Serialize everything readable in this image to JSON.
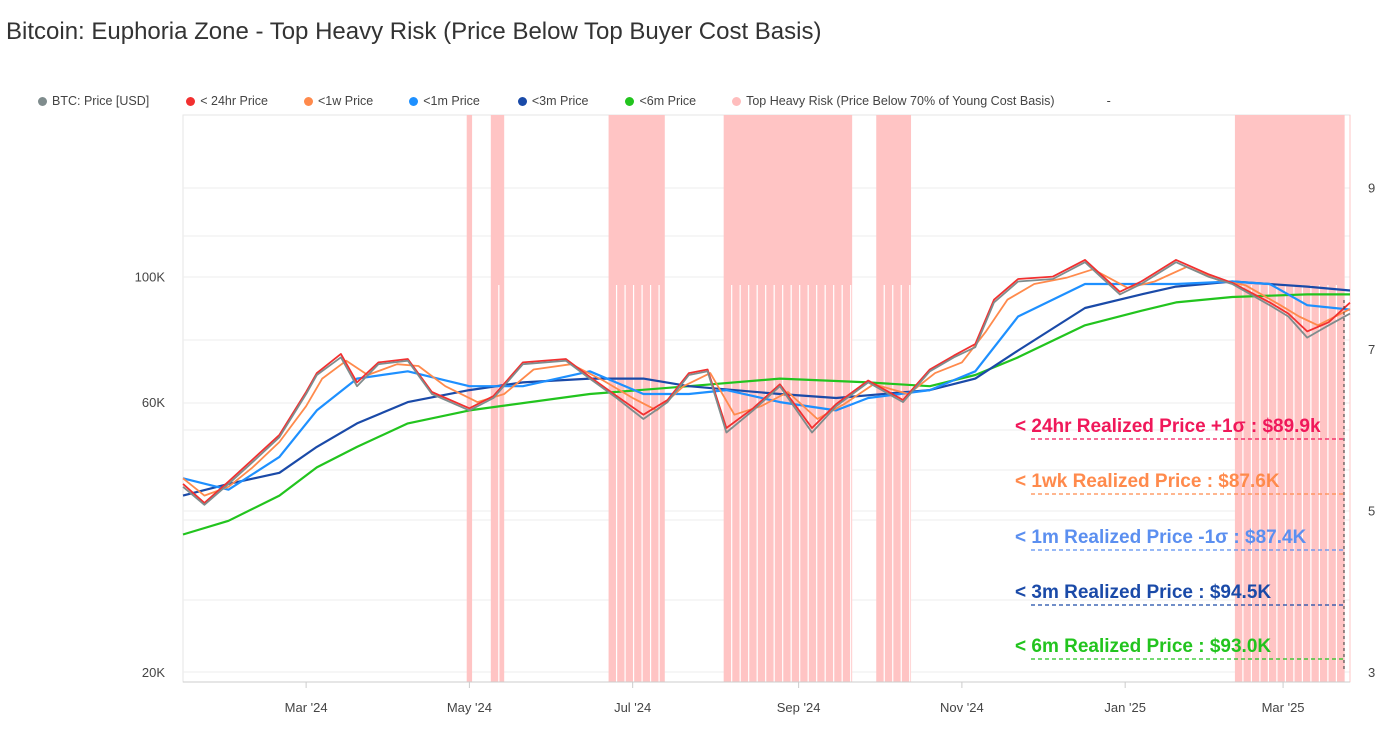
{
  "title": "Bitcoin: Euphoria Zone - Top Heavy Risk (Price Below Top Buyer Cost Basis)",
  "legend": [
    {
      "label": "BTC: Price [USD]",
      "color": "#7f8c8d"
    },
    {
      "label": "< 24hr Price",
      "color": "#f23030"
    },
    {
      "label": "<1w Price",
      "color": "#ff8a4c"
    },
    {
      "label": "<1m Price",
      "color": "#1e90ff"
    },
    {
      "label": "<3m Price",
      "color": "#1a4aa8"
    },
    {
      "label": "<6m Price",
      "color": "#22c41e"
    },
    {
      "label": "Top Heavy Risk (Price Below 70% of Young Cost Basis)",
      "color": "#ffbdbd"
    },
    {
      "label": "-",
      "color": ""
    }
  ],
  "chart_data": {
    "type": "line",
    "title": "Bitcoin: Euphoria Zone - Top Heavy Risk (Price Below Top Buyer Cost Basis)",
    "y_scale": "log",
    "ylim": [
      20000,
      193000
    ],
    "y_ticks": [
      {
        "value": 20000,
        "label": "20K"
      },
      {
        "value": 60000,
        "label": "60K"
      },
      {
        "value": 100000,
        "label": "100K"
      }
    ],
    "y2_ticks": [
      3,
      5,
      7,
      9
    ],
    "y2lim": [
      3,
      9.9
    ],
    "xlim": [
      "2024-01-15",
      "2025-03-26"
    ],
    "x_ticks": [
      {
        "date": "2024-03-01",
        "label": "Mar '24"
      },
      {
        "date": "2024-05-01",
        "label": "May '24"
      },
      {
        "date": "2024-07-01",
        "label": "Jul '24"
      },
      {
        "date": "2024-09-01",
        "label": "Sep '24"
      },
      {
        "date": "2024-11-01",
        "label": "Nov '24"
      },
      {
        "date": "2025-01-01",
        "label": "Jan '25"
      },
      {
        "date": "2025-03-01",
        "label": "Mar '25"
      }
    ],
    "grid": true,
    "legend_position": "top",
    "shaded_ranges": [
      [
        "2024-04-30",
        "2024-05-02"
      ],
      [
        "2024-05-09",
        "2024-05-14"
      ],
      [
        "2024-06-22",
        "2024-07-13"
      ],
      [
        "2024-08-04",
        "2024-09-21"
      ],
      [
        "2024-09-30",
        "2024-10-13"
      ],
      [
        "2025-02-11",
        "2025-03-24"
      ]
    ],
    "series": [
      {
        "name": "BTC: Price [USD]",
        "color": "#7f8c8d",
        "points": [
          [
            "2024-01-15",
            42500
          ],
          [
            "2024-01-23",
            39500
          ],
          [
            "2024-02-01",
            43000
          ],
          [
            "2024-02-10",
            47000
          ],
          [
            "2024-02-20",
            52000
          ],
          [
            "2024-03-01",
            62000
          ],
          [
            "2024-03-05",
            67000
          ],
          [
            "2024-03-14",
            72000
          ],
          [
            "2024-03-20",
            64000
          ],
          [
            "2024-03-28",
            70000
          ],
          [
            "2024-04-08",
            71000
          ],
          [
            "2024-04-17",
            62000
          ],
          [
            "2024-05-01",
            58000
          ],
          [
            "2024-05-10",
            61000
          ],
          [
            "2024-05-21",
            70000
          ],
          [
            "2024-06-06",
            71000
          ],
          [
            "2024-06-15",
            66000
          ],
          [
            "2024-06-25",
            61000
          ],
          [
            "2024-07-05",
            56000
          ],
          [
            "2024-07-14",
            60000
          ],
          [
            "2024-07-22",
            67000
          ],
          [
            "2024-07-29",
            68000
          ],
          [
            "2024-08-05",
            53000
          ],
          [
            "2024-08-15",
            58000
          ],
          [
            "2024-08-25",
            64000
          ],
          [
            "2024-09-06",
            53000
          ],
          [
            "2024-09-15",
            59000
          ],
          [
            "2024-09-27",
            65000
          ],
          [
            "2024-10-10",
            60000
          ],
          [
            "2024-10-20",
            68000
          ],
          [
            "2024-10-29",
            72000
          ],
          [
            "2024-11-06",
            75000
          ],
          [
            "2024-11-13",
            90000
          ],
          [
            "2024-11-22",
            98000
          ],
          [
            "2024-12-05",
            99000
          ],
          [
            "2024-12-17",
            106000
          ],
          [
            "2024-12-30",
            93000
          ],
          [
            "2025-01-07",
            97000
          ],
          [
            "2025-01-20",
            106000
          ],
          [
            "2025-02-01",
            100000
          ],
          [
            "2025-02-10",
            97000
          ],
          [
            "2025-02-24",
            89000
          ],
          [
            "2025-03-03",
            85000
          ],
          [
            "2025-03-10",
            78000
          ],
          [
            "2025-03-18",
            82000
          ],
          [
            "2025-03-26",
            86000
          ]
        ]
      },
      {
        "name": "< 24hr Price",
        "color": "#f23030",
        "points": [
          [
            "2024-01-15",
            43000
          ],
          [
            "2024-01-23",
            39800
          ],
          [
            "2024-02-01",
            43400
          ],
          [
            "2024-02-10",
            47500
          ],
          [
            "2024-02-20",
            52500
          ],
          [
            "2024-03-01",
            62500
          ],
          [
            "2024-03-05",
            67500
          ],
          [
            "2024-03-14",
            73000
          ],
          [
            "2024-03-20",
            65000
          ],
          [
            "2024-03-28",
            70500
          ],
          [
            "2024-04-08",
            71500
          ],
          [
            "2024-04-17",
            62500
          ],
          [
            "2024-05-01",
            58500
          ],
          [
            "2024-05-10",
            61500
          ],
          [
            "2024-05-21",
            70500
          ],
          [
            "2024-06-06",
            71500
          ],
          [
            "2024-06-15",
            66500
          ],
          [
            "2024-06-25",
            61500
          ],
          [
            "2024-07-05",
            57000
          ],
          [
            "2024-07-14",
            60500
          ],
          [
            "2024-07-22",
            67500
          ],
          [
            "2024-07-29",
            68500
          ],
          [
            "2024-08-05",
            54000
          ],
          [
            "2024-08-15",
            58500
          ],
          [
            "2024-08-25",
            64500
          ],
          [
            "2024-09-06",
            54000
          ],
          [
            "2024-09-15",
            59500
          ],
          [
            "2024-09-27",
            65500
          ],
          [
            "2024-10-10",
            60500
          ],
          [
            "2024-10-20",
            68500
          ],
          [
            "2024-10-29",
            72500
          ],
          [
            "2024-11-06",
            76000
          ],
          [
            "2024-11-13",
            91000
          ],
          [
            "2024-11-22",
            99000
          ],
          [
            "2024-12-05",
            100000
          ],
          [
            "2024-12-17",
            107000
          ],
          [
            "2024-12-30",
            94000
          ],
          [
            "2025-01-07",
            98000
          ],
          [
            "2025-01-20",
            107000
          ],
          [
            "2025-02-01",
            101000
          ],
          [
            "2025-02-10",
            97500
          ],
          [
            "2025-02-24",
            90000
          ],
          [
            "2025-03-03",
            86000
          ],
          [
            "2025-03-10",
            80000
          ],
          [
            "2025-03-18",
            83000
          ],
          [
            "2025-03-26",
            89900
          ]
        ]
      },
      {
        "name": "<1w Price",
        "color": "#ff8a4c",
        "points": [
          [
            "2024-01-15",
            44000
          ],
          [
            "2024-01-23",
            41000
          ],
          [
            "2024-02-01",
            42500
          ],
          [
            "2024-02-10",
            46000
          ],
          [
            "2024-02-20",
            51000
          ],
          [
            "2024-03-01",
            59000
          ],
          [
            "2024-03-07",
            66000
          ],
          [
            "2024-03-16",
            71000
          ],
          [
            "2024-03-24",
            67000
          ],
          [
            "2024-04-04",
            70000
          ],
          [
            "2024-04-12",
            69500
          ],
          [
            "2024-04-22",
            64000
          ],
          [
            "2024-05-04",
            60000
          ],
          [
            "2024-05-14",
            62000
          ],
          [
            "2024-05-25",
            68500
          ],
          [
            "2024-06-08",
            70000
          ],
          [
            "2024-06-20",
            65500
          ],
          [
            "2024-07-01",
            61000
          ],
          [
            "2024-07-10",
            58000
          ],
          [
            "2024-07-20",
            64000
          ],
          [
            "2024-07-30",
            67500
          ],
          [
            "2024-08-08",
            57000
          ],
          [
            "2024-08-18",
            59000
          ],
          [
            "2024-08-28",
            62500
          ],
          [
            "2024-09-08",
            56000
          ],
          [
            "2024-09-18",
            59500
          ],
          [
            "2024-09-29",
            64500
          ],
          [
            "2024-10-12",
            62000
          ],
          [
            "2024-10-22",
            67500
          ],
          [
            "2024-11-01",
            70500
          ],
          [
            "2024-11-10",
            80000
          ],
          [
            "2024-11-18",
            91000
          ],
          [
            "2024-11-28",
            97000
          ],
          [
            "2024-12-10",
            99500
          ],
          [
            "2024-12-20",
            103000
          ],
          [
            "2025-01-02",
            95500
          ],
          [
            "2025-01-12",
            98000
          ],
          [
            "2025-01-24",
            104000
          ],
          [
            "2025-02-05",
            98500
          ],
          [
            "2025-02-15",
            96500
          ],
          [
            "2025-02-28",
            89000
          ],
          [
            "2025-03-07",
            85000
          ],
          [
            "2025-03-14",
            82000
          ],
          [
            "2025-03-26",
            87600
          ]
        ]
      },
      {
        "name": "<1m Price",
        "color": "#1e90ff",
        "points": [
          [
            "2024-01-15",
            44000
          ],
          [
            "2024-02-01",
            42000
          ],
          [
            "2024-02-20",
            48000
          ],
          [
            "2024-03-05",
            58000
          ],
          [
            "2024-03-20",
            66000
          ],
          [
            "2024-04-08",
            68000
          ],
          [
            "2024-05-01",
            64000
          ],
          [
            "2024-05-21",
            64000
          ],
          [
            "2024-06-15",
            68000
          ],
          [
            "2024-07-05",
            62000
          ],
          [
            "2024-07-22",
            62000
          ],
          [
            "2024-08-05",
            63000
          ],
          [
            "2024-08-25",
            60000
          ],
          [
            "2024-09-15",
            58000
          ],
          [
            "2024-09-27",
            61000
          ],
          [
            "2024-10-20",
            63000
          ],
          [
            "2024-11-06",
            68000
          ],
          [
            "2024-11-22",
            85000
          ],
          [
            "2024-12-17",
            97000
          ],
          [
            "2025-01-07",
            97000
          ],
          [
            "2025-01-20",
            97000
          ],
          [
            "2025-02-10",
            98000
          ],
          [
            "2025-02-24",
            97000
          ],
          [
            "2025-03-10",
            89000
          ],
          [
            "2025-03-26",
            87400
          ]
        ]
      },
      {
        "name": "<3m Price",
        "color": "#1a4aa8",
        "points": [
          [
            "2024-01-15",
            41000
          ],
          [
            "2024-02-01",
            43000
          ],
          [
            "2024-02-20",
            45000
          ],
          [
            "2024-03-05",
            50000
          ],
          [
            "2024-03-20",
            55000
          ],
          [
            "2024-04-08",
            60000
          ],
          [
            "2024-05-01",
            63000
          ],
          [
            "2024-05-21",
            65000
          ],
          [
            "2024-06-15",
            66000
          ],
          [
            "2024-07-05",
            66000
          ],
          [
            "2024-07-22",
            64000
          ],
          [
            "2024-08-25",
            62000
          ],
          [
            "2024-09-15",
            61000
          ],
          [
            "2024-10-20",
            63000
          ],
          [
            "2024-11-06",
            66000
          ],
          [
            "2024-11-22",
            74000
          ],
          [
            "2024-12-17",
            88000
          ],
          [
            "2025-01-07",
            93000
          ],
          [
            "2025-01-20",
            96000
          ],
          [
            "2025-02-10",
            98000
          ],
          [
            "2025-03-10",
            96000
          ],
          [
            "2025-03-26",
            94500
          ]
        ]
      },
      {
        "name": "<6m Price",
        "color": "#22c41e",
        "points": [
          [
            "2024-01-15",
            35000
          ],
          [
            "2024-02-01",
            37000
          ],
          [
            "2024-02-20",
            41000
          ],
          [
            "2024-03-05",
            46000
          ],
          [
            "2024-03-20",
            50000
          ],
          [
            "2024-04-08",
            55000
          ],
          [
            "2024-05-01",
            58000
          ],
          [
            "2024-06-15",
            62000
          ],
          [
            "2024-07-22",
            64000
          ],
          [
            "2024-08-25",
            66000
          ],
          [
            "2024-09-27",
            65000
          ],
          [
            "2024-10-20",
            64000
          ],
          [
            "2024-11-06",
            67000
          ],
          [
            "2024-11-22",
            72000
          ],
          [
            "2024-12-17",
            82000
          ],
          [
            "2025-01-07",
            87000
          ],
          [
            "2025-01-20",
            90000
          ],
          [
            "2025-02-10",
            92000
          ],
          [
            "2025-03-10",
            93000
          ],
          [
            "2025-03-26",
            93000
          ]
        ]
      }
    ],
    "annotations": [
      {
        "text": "< 24hr Realized Price +1σ : $89.9k",
        "color": "#f0185a"
      },
      {
        "text": "<  1wk Realized Price  : $87.6K",
        "color": "#ff8a4c"
      },
      {
        "text": "< 1m Realized Price -1σ : $87.4K",
        "color": "#5b8ff0"
      },
      {
        "text": "< 3m Realized Price  : $94.5K",
        "color": "#1a4aa8"
      },
      {
        "text": "< 6m Realized Price  : $93.0K",
        "color": "#22c41e"
      }
    ]
  }
}
